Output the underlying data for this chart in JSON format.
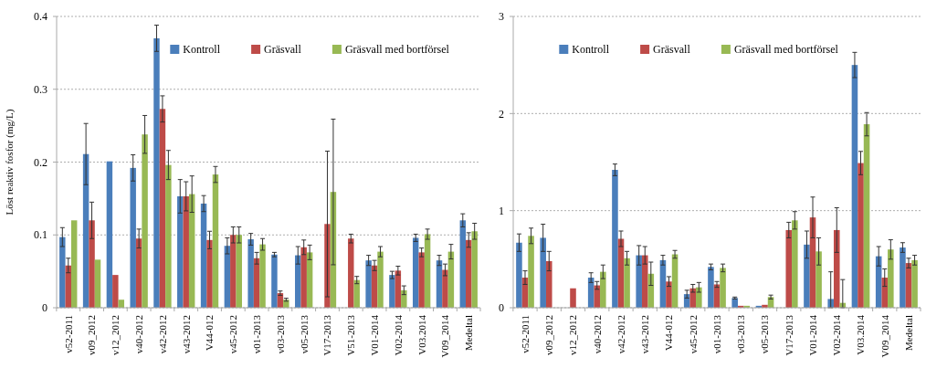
{
  "chart_data": [
    {
      "type": "bar",
      "ylabel": "Löst reaktiv fosfor (mg/L)",
      "categories": [
        "v52-2011",
        "v09_2012",
        "v12_2012",
        "v40-2012",
        "v42-2012",
        "v43-2012",
        "V44-012",
        "v45-2012",
        "v01-2013",
        "v03-2013",
        "v05-2013",
        "V17-2013",
        "V51-2013",
        "V01-2014",
        "V02-2014",
        "V03.2014",
        "V09_2014",
        "Medeltal"
      ],
      "ylim": [
        0,
        0.4
      ],
      "yticks": [
        0,
        0.1,
        0.2,
        0.3,
        0.4
      ],
      "grid": "y",
      "legend": "top",
      "series": [
        {
          "name": "Kontroll",
          "color": "#4a7ebb",
          "values": [
            0.097,
            0.211,
            0.201,
            0.192,
            0.37,
            0.153,
            0.143,
            0.085,
            0.094,
            0.073,
            0.072,
            null,
            0,
            0.065,
            0.045,
            0.096,
            0.065,
            0.12
          ],
          "errors": [
            0.013,
            0.042,
            null,
            0.018,
            0.018,
            0.023,
            0.011,
            0.011,
            0.008,
            0.003,
            0.012,
            null,
            null,
            0.007,
            0.005,
            0.005,
            0.007,
            0.009
          ]
        },
        {
          "name": "Gräsvall",
          "color": "#be4b48",
          "values": [
            0.058,
            0.12,
            0.045,
            0.095,
            0.273,
            0.153,
            0.093,
            0.1,
            0.068,
            0.02,
            0.083,
            0.115,
            0.095,
            0.058,
            0.051,
            0.076,
            0.052,
            0.093
          ],
          "errors": [
            0.01,
            0.025,
            null,
            0.013,
            0.018,
            0.02,
            0.012,
            0.011,
            0.008,
            0.003,
            0.01,
            0.1,
            0.006,
            0.007,
            0.006,
            0.006,
            0.008,
            0.01
          ]
        },
        {
          "name": "Gräsvall med bortförsel",
          "color": "#98b954",
          "values": [
            0.12,
            0.066,
            0.011,
            0.238,
            0.196,
            0.156,
            0.183,
            0.1,
            0.087,
            0.011,
            0.076,
            0.159,
            0.038,
            0.077,
            0.024,
            0.101,
            0.077,
            0.105
          ],
          "errors": [
            null,
            null,
            null,
            0.026,
            0.02,
            0.025,
            0.011,
            0.011,
            0.008,
            0.002,
            0.01,
            0.1,
            0.005,
            0.007,
            0.006,
            0.007,
            0.01,
            0.011
          ]
        }
      ]
    },
    {
      "type": "bar",
      "categories": [
        "v52-2011",
        "v09_2012",
        "v12_2012",
        "v40-2012",
        "v42-2012",
        "v43-2012",
        "V44-012",
        "v45-2012",
        "v01-2013",
        "v03-2013",
        "v05-2013",
        "V17-2013",
        "V01-2014",
        "V02-2014",
        "V03.2014",
        "V09_2014",
        "Medeltal"
      ],
      "ylim": [
        0,
        3
      ],
      "yticks": [
        0,
        1,
        2,
        3
      ],
      "grid": "y",
      "legend": "top",
      "series": [
        {
          "name": "Kontroll",
          "color": "#4a7ebb",
          "values": [
            0.67,
            0.72,
            null,
            0.31,
            1.42,
            0.54,
            0.49,
            0.14,
            0.42,
            0.1,
            0.02,
            null,
            0.65,
            0.09,
            2.5,
            0.53,
            0.62
          ],
          "errors": [
            0.09,
            0.14,
            null,
            0.05,
            0.06,
            0.1,
            0.05,
            0.04,
            0.03,
            0.01,
            null,
            null,
            0.14,
            [
              0,
              0.37
            ],
            0.13,
            0.1,
            0.05
          ]
        },
        {
          "name": "Gräsvall",
          "color": "#be4b48",
          "values": [
            0.31,
            0.48,
            0.2,
            0.23,
            0.71,
            0.54,
            0.27,
            0.2,
            0.24,
            0.02,
            0.03,
            0.8,
            0.93,
            0.8,
            1.49,
            0.31,
            0.46
          ],
          "errors": [
            0.07,
            0.1,
            null,
            0.04,
            0.08,
            0.09,
            0.05,
            0.04,
            0.03,
            null,
            null,
            0.08,
            0.21,
            0.23,
            0.12,
            0.09,
            0.05
          ]
        },
        {
          "name": "Gräsvall med bortförsel",
          "color": "#98b954",
          "values": [
            0.74,
            null,
            0,
            0.37,
            0.51,
            0.35,
            0.55,
            0.21,
            0.41,
            0.02,
            0.11,
            0.9,
            0.58,
            0.05,
            1.89,
            0.6,
            0.49
          ],
          "errors": [
            0.08,
            null,
            null,
            0.07,
            0.07,
            0.12,
            0.04,
            0.05,
            0.04,
            null,
            0.02,
            0.09,
            0.14,
            [
              0,
              0.29
            ],
            0.12,
            0.1,
            0.05
          ]
        }
      ]
    }
  ]
}
